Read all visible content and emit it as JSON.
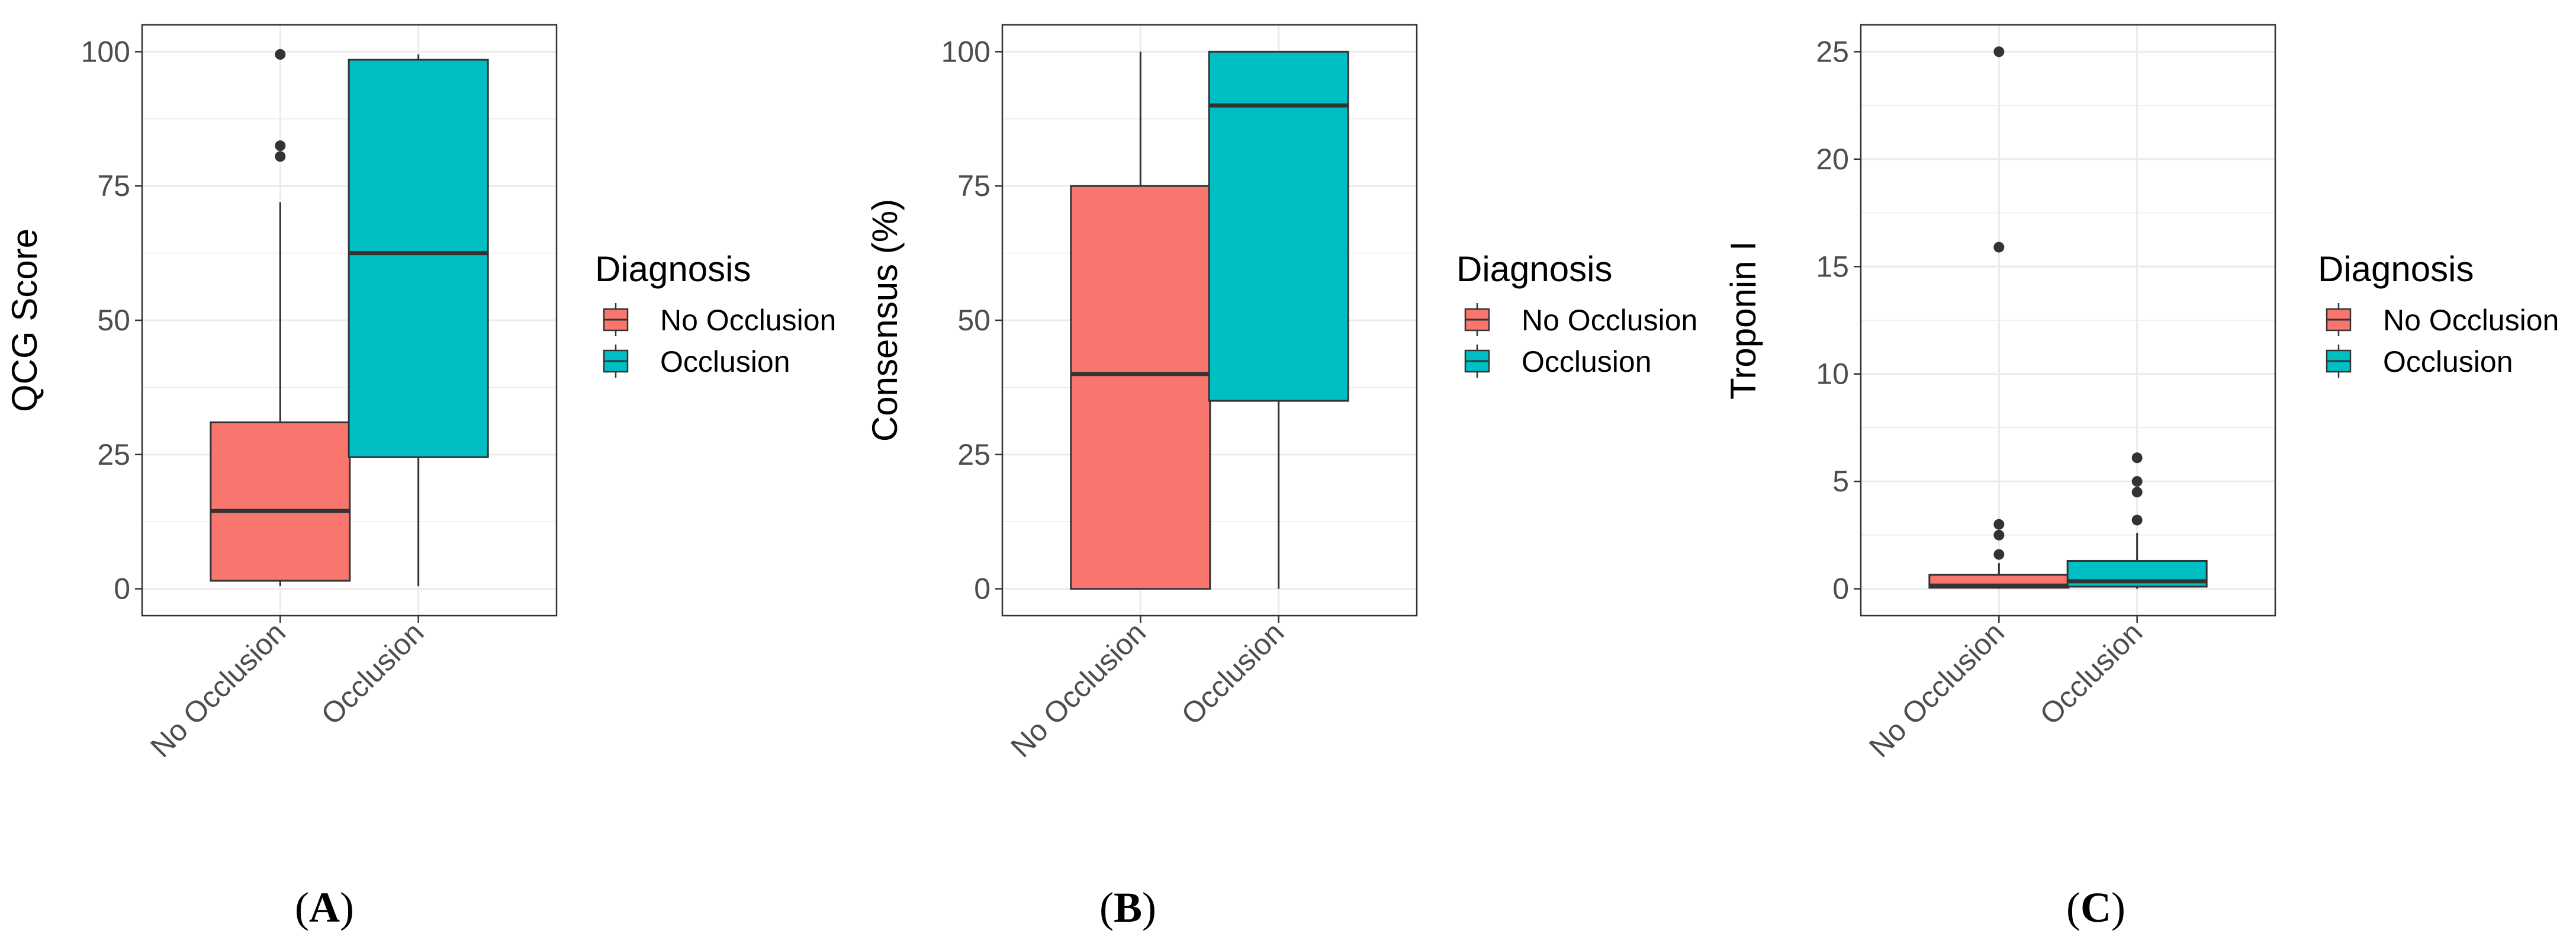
{
  "colors": {
    "no_occlusion": "#F8766D",
    "occlusion": "#00BFC4",
    "panel_bg": "#FFFFFF",
    "grid": "#EBEBEB",
    "border": "#333333",
    "box_outline": "#333333"
  },
  "chart_data": [
    {
      "panel_label": "(A)",
      "panel_letter": "A",
      "type": "boxplot",
      "title": "",
      "xlabel": "",
      "ylabel": "QCG Score",
      "ylim": [
        -5,
        105
      ],
      "yticks": [
        0,
        25,
        50,
        75,
        100
      ],
      "ytick_labels": [
        "0",
        "25",
        "50",
        "75",
        "100"
      ],
      "categories": [
        "No Occlusion",
        "Occlusion"
      ],
      "legend": {
        "title": "Diagnosis",
        "entries": [
          "No Occlusion",
          "Occlusion"
        ]
      },
      "boxes": [
        {
          "category": "No Occlusion",
          "whisker_low": 0.5,
          "q1": 1.5,
          "median": 14.5,
          "q3": 31,
          "whisker_high": 72,
          "outliers": [
            80.5,
            82.5,
            99.5
          ]
        },
        {
          "category": "Occlusion",
          "whisker_low": 0.5,
          "q1": 24.5,
          "median": 62.5,
          "q3": 98.5,
          "whisker_high": 99.5,
          "outliers": []
        }
      ]
    },
    {
      "panel_label": "(B)",
      "panel_letter": "B",
      "type": "boxplot",
      "title": "",
      "xlabel": "",
      "ylabel": "Consensus (%)",
      "ylim": [
        -5,
        105
      ],
      "yticks": [
        0,
        25,
        50,
        75,
        100
      ],
      "ytick_labels": [
        "0",
        "25",
        "50",
        "75",
        "100"
      ],
      "categories": [
        "No Occlusion",
        "Occlusion"
      ],
      "legend": {
        "title": "Diagnosis",
        "entries": [
          "No Occlusion",
          "Occlusion"
        ]
      },
      "boxes": [
        {
          "category": "No Occlusion",
          "whisker_low": 0,
          "q1": 0,
          "median": 40,
          "q3": 75,
          "whisker_high": 100,
          "outliers": []
        },
        {
          "category": "Occlusion",
          "whisker_low": 0,
          "q1": 35,
          "median": 90,
          "q3": 100,
          "whisker_high": 100,
          "outliers": []
        }
      ]
    },
    {
      "panel_label": "(C)",
      "panel_letter": "C",
      "type": "boxplot",
      "title": "",
      "xlabel": "",
      "ylabel": "Troponin I",
      "ylim": [
        -1.25,
        26.25
      ],
      "yticks": [
        0,
        5,
        10,
        15,
        20,
        25
      ],
      "ytick_labels": [
        "0",
        "5",
        "10",
        "15",
        "20",
        "25"
      ],
      "categories": [
        "No Occlusion",
        "Occlusion"
      ],
      "legend": {
        "title": "Diagnosis",
        "entries": [
          "No Occlusion",
          "Occlusion"
        ]
      },
      "boxes": [
        {
          "category": "No Occlusion",
          "whisker_low": 0,
          "q1": 0.05,
          "median": 0.15,
          "q3": 0.65,
          "whisker_high": 1.2,
          "outliers": [
            1.6,
            2.5,
            3.0,
            15.9,
            25.0
          ]
        },
        {
          "category": "Occlusion",
          "whisker_low": 0,
          "q1": 0.1,
          "median": 0.35,
          "q3": 1.3,
          "whisker_high": 2.6,
          "outliers": [
            3.2,
            4.5,
            5.0,
            6.1
          ]
        }
      ]
    }
  ]
}
